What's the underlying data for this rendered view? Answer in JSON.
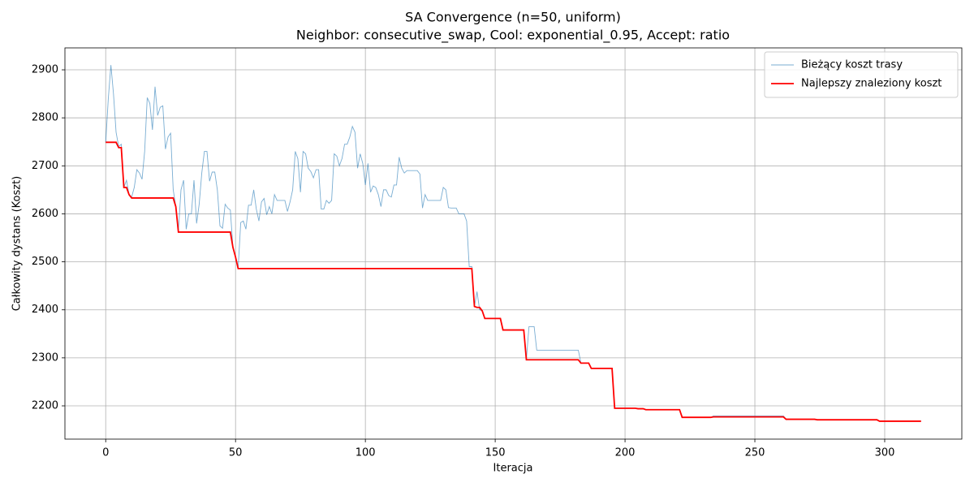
{
  "chart_data": {
    "type": "line",
    "title": "SA Convergence (n=50, uniform)",
    "subtitle": "Neighbor: consecutive_swap, Cool: exponential_0.95, Accept: ratio",
    "x_label": "Iteracja",
    "y_label": "Całkowity dystans (Koszt)",
    "xlim": [
      -15.7,
      329.7
    ],
    "xticks": [
      0,
      50,
      100,
      150,
      200,
      250,
      300
    ],
    "ylim": [
      2130.7,
      2945.7
    ],
    "yticks": [
      2200,
      2300,
      2400,
      2500,
      2600,
      2700,
      2800,
      2900
    ],
    "grid": true,
    "legend": "upper right",
    "x": [
      0,
      1,
      2,
      3,
      4,
      5,
      6,
      7,
      8,
      9,
      10,
      11,
      12,
      13,
      14,
      15,
      16,
      17,
      18,
      19,
      20,
      21,
      22,
      23,
      24,
      25,
      26,
      27,
      28,
      29,
      30,
      31,
      32,
      33,
      34,
      35,
      36,
      37,
      38,
      39,
      40,
      41,
      42,
      43,
      44,
      45,
      46,
      47,
      48,
      49,
      50,
      51,
      52,
      53,
      54,
      55,
      56,
      57,
      58,
      59,
      60,
      61,
      62,
      63,
      64,
      65,
      66,
      67,
      68,
      69,
      70,
      71,
      72,
      73,
      74,
      75,
      76,
      77,
      78,
      79,
      80,
      81,
      82,
      83,
      84,
      85,
      86,
      87,
      88,
      89,
      90,
      91,
      92,
      93,
      94,
      95,
      96,
      97,
      98,
      99,
      100,
      101,
      102,
      103,
      104,
      105,
      106,
      107,
      108,
      109,
      110,
      111,
      112,
      113,
      114,
      115,
      116,
      117,
      118,
      119,
      120,
      121,
      122,
      123,
      124,
      125,
      126,
      127,
      128,
      129,
      130,
      131,
      132,
      133,
      134,
      135,
      136,
      137,
      138,
      139,
      140,
      141,
      142,
      143,
      144,
      145,
      146,
      147,
      148,
      149,
      150,
      151,
      152,
      153,
      154,
      155,
      156,
      157,
      158,
      159,
      160,
      161,
      162,
      163,
      164,
      165,
      166,
      167,
      168,
      169,
      170,
      171,
      172,
      173,
      174,
      175,
      176,
      177,
      178,
      179,
      180,
      181,
      182,
      183,
      184,
      185,
      186,
      187,
      188,
      189,
      190,
      191,
      192,
      193,
      194,
      195,
      196,
      197,
      198,
      199,
      200,
      201,
      202,
      203,
      204,
      205,
      206,
      207,
      208,
      209,
      210,
      211,
      212,
      213,
      214,
      215,
      216,
      217,
      218,
      219,
      220,
      221,
      222,
      223,
      224,
      225,
      226,
      227,
      228,
      229,
      230,
      231,
      232,
      233,
      234,
      235,
      236,
      237,
      238,
      239,
      240,
      241,
      242,
      243,
      244,
      245,
      246,
      247,
      248,
      249,
      250,
      251,
      252,
      253,
      254,
      255,
      256,
      257,
      258,
      259,
      260,
      261,
      262,
      263,
      264,
      265,
      266,
      267,
      268,
      269,
      270,
      271,
      272,
      273,
      274,
      275,
      276,
      277,
      278,
      279,
      280,
      281,
      282,
      283,
      284,
      285,
      286,
      287,
      288,
      289,
      290,
      291,
      292,
      293,
      294,
      295,
      296,
      297,
      298,
      299,
      300,
      301,
      302,
      303,
      304,
      305,
      306,
      307,
      308,
      309,
      310,
      311,
      312,
      313,
      314
    ],
    "series": [
      {
        "name": "Bieżący koszt trasy",
        "color": "#1f77b4",
        "values": [
          2749,
          2840,
          2910,
          2850,
          2770,
          2740,
          2745,
          2655,
          2670,
          2640,
          2635,
          2655,
          2692,
          2685,
          2672,
          2730,
          2842,
          2830,
          2775,
          2865,
          2805,
          2822,
          2825,
          2735,
          2760,
          2768,
          2650,
          2615,
          2565,
          2650,
          2670,
          2568,
          2600,
          2600,
          2670,
          2580,
          2620,
          2685,
          2730,
          2730,
          2668,
          2687,
          2687,
          2650,
          2575,
          2570,
          2620,
          2612,
          2608,
          2530,
          2510,
          2486,
          2582,
          2585,
          2568,
          2618,
          2618,
          2650,
          2610,
          2585,
          2625,
          2632,
          2598,
          2615,
          2600,
          2640,
          2628,
          2628,
          2628,
          2628,
          2605,
          2625,
          2650,
          2730,
          2715,
          2645,
          2730,
          2725,
          2695,
          2688,
          2675,
          2692,
          2692,
          2610,
          2610,
          2628,
          2622,
          2628,
          2725,
          2720,
          2700,
          2715,
          2745,
          2745,
          2760,
          2782,
          2770,
          2695,
          2725,
          2705,
          2660,
          2705,
          2645,
          2658,
          2655,
          2640,
          2615,
          2650,
          2650,
          2638,
          2635,
          2660,
          2660,
          2718,
          2695,
          2685,
          2690,
          2690,
          2690,
          2690,
          2690,
          2683,
          2612,
          2640,
          2628,
          2628,
          2628,
          2628,
          2628,
          2628,
          2655,
          2650,
          2613,
          2612,
          2612,
          2612,
          2600,
          2600,
          2600,
          2585,
          2490,
          2490,
          2407,
          2438,
          2400,
          2398,
          2382,
          2382,
          2382,
          2382,
          2382,
          2382,
          2382,
          2358,
          2358,
          2358,
          2358,
          2358,
          2358,
          2358,
          2358,
          2358,
          2296,
          2365,
          2365,
          2365,
          2316,
          2316,
          2316,
          2316,
          2316,
          2316,
          2316,
          2316,
          2316,
          2316,
          2316,
          2316,
          2316,
          2316,
          2316,
          2316,
          2316,
          2290,
          2289,
          2289,
          2289,
          2278,
          2278,
          2278,
          2278,
          2278,
          2278,
          2278,
          2278,
          2278,
          2195,
          2195,
          2195,
          2195,
          2195,
          2195,
          2195,
          2195,
          2195,
          2194,
          2194,
          2194,
          2192,
          2192,
          2192,
          2192,
          2192,
          2192,
          2192,
          2192,
          2192,
          2192,
          2192,
          2192,
          2192,
          2192,
          2176,
          2176,
          2176,
          2176,
          2176,
          2176,
          2176,
          2176,
          2176,
          2176,
          2176,
          2176,
          2179,
          2179,
          2179,
          2179,
          2179,
          2179,
          2179,
          2179,
          2179,
          2179,
          2179,
          2179,
          2179,
          2179,
          2179,
          2179,
          2179,
          2179,
          2179,
          2179,
          2179,
          2179,
          2179,
          2179,
          2179,
          2179,
          2179,
          2179,
          2172,
          2172,
          2172,
          2172,
          2172,
          2172,
          2172,
          2172,
          2172,
          2172,
          2172,
          2172,
          2171,
          2171,
          2171,
          2171,
          2171,
          2171,
          2171,
          2171,
          2171,
          2171,
          2171,
          2171,
          2171,
          2171,
          2171,
          2171,
          2171,
          2171,
          2171,
          2171,
          2171,
          2171,
          2171,
          2171,
          2168,
          2168,
          2168,
          2168,
          2168,
          2168,
          2168,
          2168,
          2168,
          2168,
          2168,
          2168,
          2168,
          2168,
          2168,
          2168,
          2168
        ]
      },
      {
        "name": "Najlepszy znaleziony koszt",
        "color": "#ff0000",
        "values": [
          2749,
          2749,
          2749,
          2749,
          2749,
          2738,
          2738,
          2655,
          2655,
          2640,
          2633,
          2633,
          2633,
          2633,
          2633,
          2633,
          2633,
          2633,
          2633,
          2633,
          2633,
          2633,
          2633,
          2633,
          2633,
          2633,
          2633,
          2615,
          2562,
          2562,
          2562,
          2562,
          2562,
          2562,
          2562,
          2562,
          2562,
          2562,
          2562,
          2562,
          2562,
          2562,
          2562,
          2562,
          2562,
          2562,
          2562,
          2562,
          2562,
          2530,
          2510,
          2486,
          2486,
          2486,
          2486,
          2486,
          2486,
          2486,
          2486,
          2486,
          2486,
          2486,
          2486,
          2486,
          2486,
          2486,
          2486,
          2486,
          2486,
          2486,
          2486,
          2486,
          2486,
          2486,
          2486,
          2486,
          2486,
          2486,
          2486,
          2486,
          2486,
          2486,
          2486,
          2486,
          2486,
          2486,
          2486,
          2486,
          2486,
          2486,
          2486,
          2486,
          2486,
          2486,
          2486,
          2486,
          2486,
          2486,
          2486,
          2486,
          2486,
          2486,
          2486,
          2486,
          2486,
          2486,
          2486,
          2486,
          2486,
          2486,
          2486,
          2486,
          2486,
          2486,
          2486,
          2486,
          2486,
          2486,
          2486,
          2486,
          2486,
          2486,
          2486,
          2486,
          2486,
          2486,
          2486,
          2486,
          2486,
          2486,
          2486,
          2486,
          2486,
          2486,
          2486,
          2486,
          2486,
          2486,
          2486,
          2486,
          2486,
          2486,
          2407,
          2405,
          2405,
          2398,
          2382,
          2382,
          2382,
          2382,
          2382,
          2382,
          2382,
          2358,
          2358,
          2358,
          2358,
          2358,
          2358,
          2358,
          2358,
          2358,
          2296,
          2296,
          2296,
          2296,
          2296,
          2296,
          2296,
          2296,
          2296,
          2296,
          2296,
          2296,
          2296,
          2296,
          2296,
          2296,
          2296,
          2296,
          2296,
          2296,
          2296,
          2289,
          2289,
          2289,
          2289,
          2278,
          2278,
          2278,
          2278,
          2278,
          2278,
          2278,
          2278,
          2278,
          2195,
          2195,
          2195,
          2195,
          2195,
          2195,
          2195,
          2195,
          2195,
          2194,
          2194,
          2194,
          2192,
          2192,
          2192,
          2192,
          2192,
          2192,
          2192,
          2192,
          2192,
          2192,
          2192,
          2192,
          2192,
          2192,
          2176,
          2176,
          2176,
          2176,
          2176,
          2176,
          2176,
          2176,
          2176,
          2176,
          2176,
          2176,
          2177,
          2177,
          2177,
          2177,
          2177,
          2177,
          2177,
          2177,
          2177,
          2177,
          2177,
          2177,
          2177,
          2177,
          2177,
          2177,
          2177,
          2177,
          2177,
          2177,
          2177,
          2177,
          2177,
          2177,
          2177,
          2177,
          2177,
          2177,
          2172,
          2172,
          2172,
          2172,
          2172,
          2172,
          2172,
          2172,
          2172,
          2172,
          2172,
          2172,
          2171,
          2171,
          2171,
          2171,
          2171,
          2171,
          2171,
          2171,
          2171,
          2171,
          2171,
          2171,
          2171,
          2171,
          2171,
          2171,
          2171,
          2171,
          2171,
          2171,
          2171,
          2171,
          2171,
          2171,
          2168,
          2168,
          2168,
          2168,
          2168,
          2168,
          2168,
          2168,
          2168,
          2168,
          2168,
          2168,
          2168,
          2168,
          2168,
          2168,
          2168
        ]
      }
    ]
  }
}
